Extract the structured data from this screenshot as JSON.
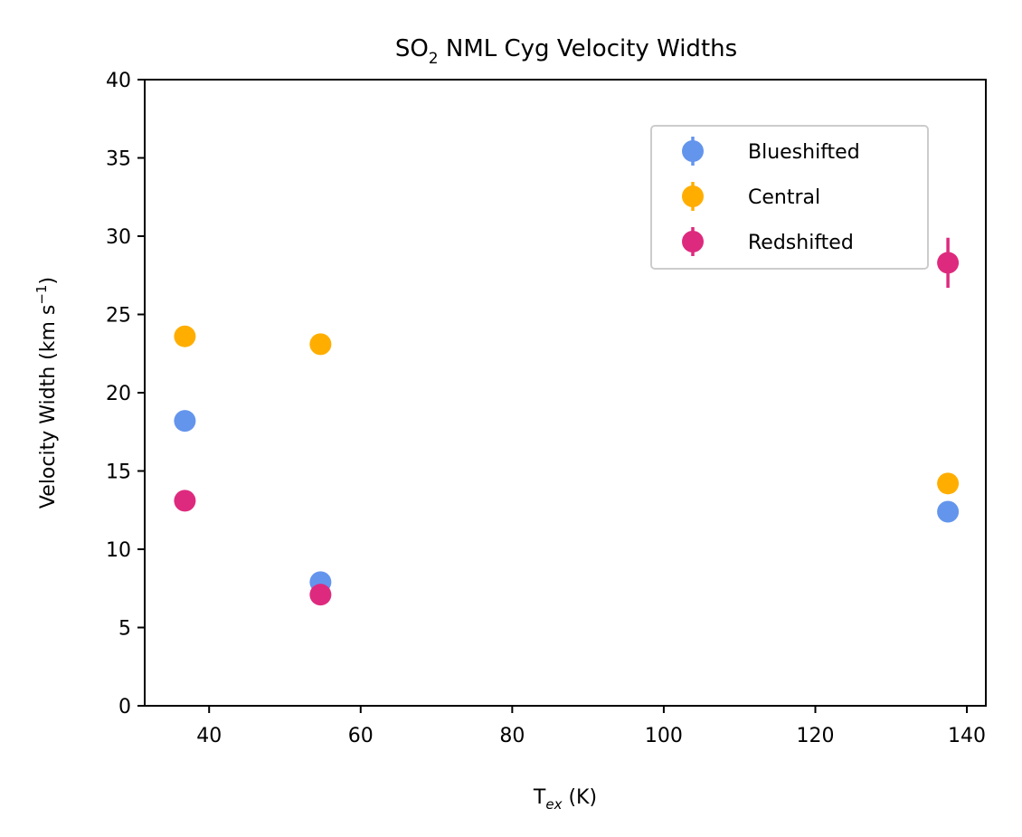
{
  "chart_data": {
    "type": "scatter",
    "title": {
      "main": "SO",
      "sub": "2",
      "rest": " NML Cyg Velocity Widths"
    },
    "xlabel": {
      "main": "T",
      "sub": "ex",
      "rest": " (K)"
    },
    "ylabel": {
      "main": "Velocity Width (km s",
      "sup": "−1",
      "rest": ")"
    },
    "xlim": [
      31.5,
      142.5
    ],
    "ylim": [
      0,
      40
    ],
    "xticks": [
      40,
      60,
      80,
      100,
      120,
      140
    ],
    "yticks": [
      0,
      5,
      10,
      15,
      20,
      25,
      30,
      35,
      40
    ],
    "legend_position": "upper-right",
    "series": [
      {
        "name": "Blueshifted",
        "color": "#6495ED",
        "points": [
          {
            "x": 36.8,
            "y": 18.2,
            "err": 0.3
          },
          {
            "x": 54.7,
            "y": 7.9,
            "err": 0.3
          },
          {
            "x": 137.5,
            "y": 12.4,
            "err": 0.4
          }
        ]
      },
      {
        "name": "Central",
        "color": "#FFAE00",
        "points": [
          {
            "x": 36.8,
            "y": 23.6,
            "err": 0.3
          },
          {
            "x": 54.7,
            "y": 23.1,
            "err": 0.3
          },
          {
            "x": 137.5,
            "y": 14.2,
            "err": 0.4
          }
        ]
      },
      {
        "name": "Redshifted",
        "color": "#DE2A7E",
        "points": [
          {
            "x": 36.8,
            "y": 13.1,
            "err": 0.3
          },
          {
            "x": 54.7,
            "y": 7.1,
            "err": 0.3
          },
          {
            "x": 137.5,
            "y": 28.3,
            "err": 1.6
          }
        ]
      }
    ]
  }
}
